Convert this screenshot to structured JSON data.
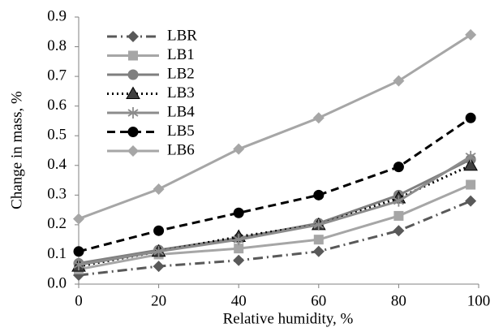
{
  "chart_data": {
    "type": "line",
    "xlabel": "Relative humidity, %",
    "ylabel": "Change in mass, %",
    "x": [
      0,
      20,
      40,
      60,
      80,
      98
    ],
    "xlim": [
      0,
      100
    ],
    "xticks": [
      0,
      20,
      40,
      60,
      80,
      100
    ],
    "ylim": [
      0,
      0.9
    ],
    "yticks": [
      {
        "value": 0,
        "label": "0.0"
      },
      0.1,
      0.2,
      0.3,
      0.4,
      0.5,
      0.6,
      0.7,
      0.8,
      0.9
    ],
    "grid": false,
    "legend": "upper left",
    "series": [
      {
        "name": "LBR",
        "color": "#595959",
        "marker": "diamond",
        "line_style": "dashdot",
        "values": [
          0.03,
          0.06,
          0.08,
          0.11,
          0.18,
          0.28
        ]
      },
      {
        "name": "LB1",
        "color": "#a6a6a6",
        "marker": "square",
        "line_style": "solid",
        "values": [
          0.05,
          0.1,
          0.12,
          0.15,
          0.23,
          0.335
        ]
      },
      {
        "name": "LB2",
        "color": "#7f7f7f",
        "marker": "circle",
        "line_style": "solid",
        "values": [
          0.07,
          0.115,
          0.155,
          0.205,
          0.3,
          0.42
        ]
      },
      {
        "name": "LB3",
        "color": "#000000",
        "marker": "triangle",
        "line_style": "dotted",
        "values": [
          0.06,
          0.11,
          0.16,
          0.2,
          0.29,
          0.4
        ]
      },
      {
        "name": "LB4",
        "color": "#8c8c8c",
        "marker": "asterisk",
        "line_style": "solid",
        "values": [
          0.065,
          0.11,
          0.15,
          0.2,
          0.28,
          0.43
        ]
      },
      {
        "name": "LB5",
        "color": "#000000",
        "marker": "circle",
        "line_style": "dashed",
        "values": [
          0.11,
          0.18,
          0.24,
          0.3,
          0.395,
          0.56
        ]
      },
      {
        "name": "LB6",
        "color": "#a6a6a6",
        "marker": "diamond",
        "line_style": "solid",
        "values": [
          0.22,
          0.32,
          0.455,
          0.56,
          0.685,
          0.84
        ]
      }
    ]
  }
}
